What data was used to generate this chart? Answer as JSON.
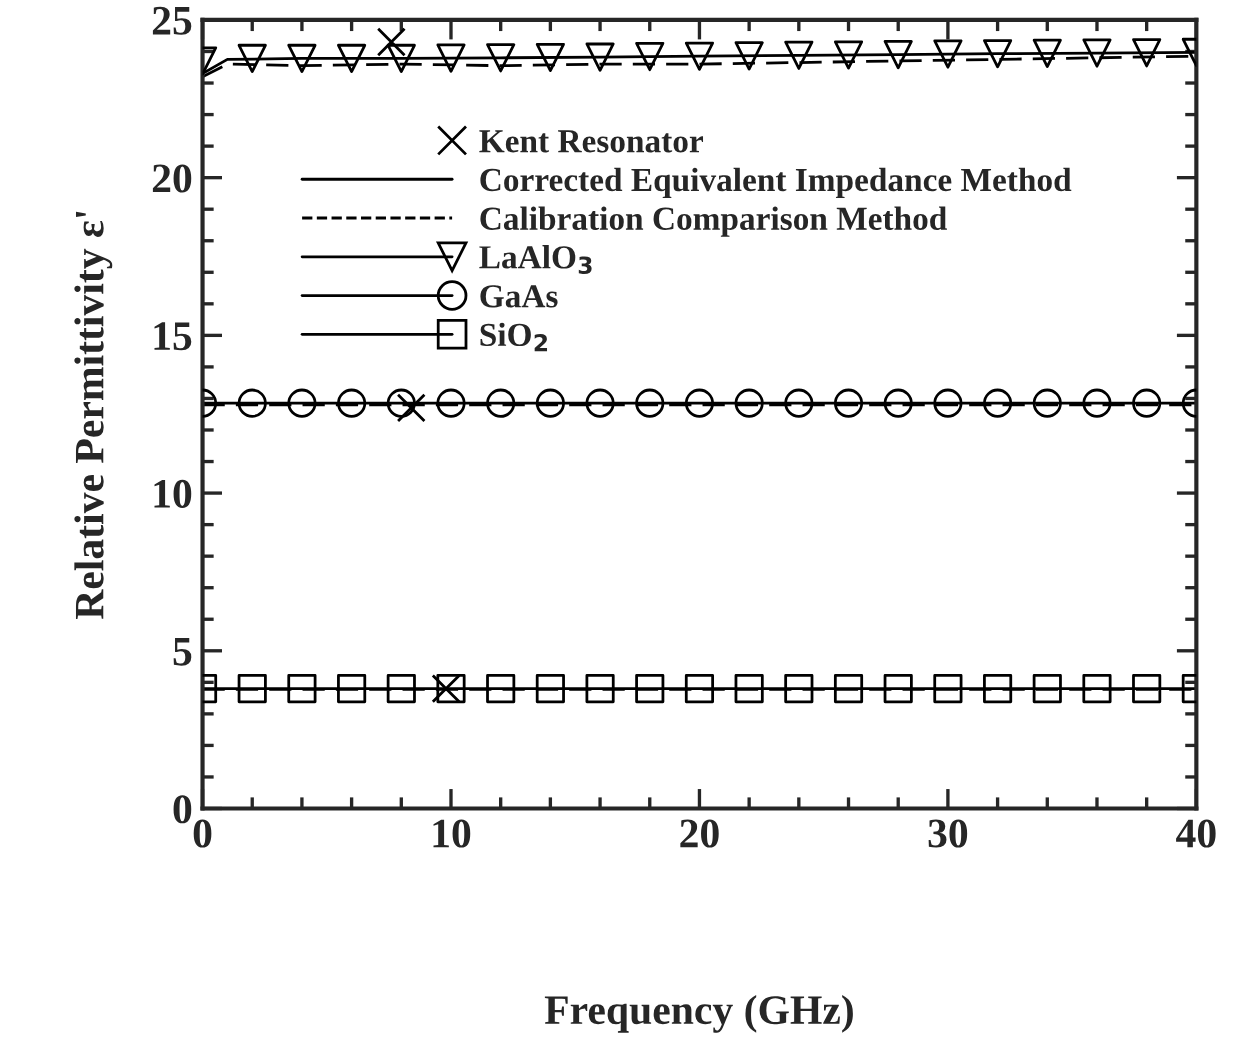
{
  "chart_data": {
    "type": "line",
    "xlabel": "Frequency (GHz)",
    "ylabel": "Relative Permittivity ε'",
    "xlim": [
      0,
      40
    ],
    "xticks": [
      0,
      10,
      20,
      30,
      40
    ],
    "ylim": [
      0,
      25
    ],
    "yticks": [
      0,
      5,
      10,
      15,
      20,
      25
    ],
    "grid": false,
    "legend": "top left",
    "series": [
      {
        "name": "Kent Resonator",
        "type": "scatter",
        "marker": "cross",
        "color": "#000000",
        "x": [
          7.6,
          8.4,
          9.8
        ],
        "values": [
          24.3,
          12.7,
          3.8
        ]
      },
      {
        "name": "Corrected Equivalent Impedance Method",
        "line_style": "solid",
        "color": "#000000",
        "x": [
          0,
          1,
          4,
          8,
          12,
          16,
          20,
          24,
          28,
          32,
          36,
          40
        ],
        "values": [
          23.3,
          23.75,
          23.78,
          23.78,
          23.8,
          23.82,
          23.85,
          23.88,
          23.9,
          23.93,
          23.95,
          23.97
        ]
      },
      {
        "name": "Calibration Comparison Method",
        "line_style": "dashed",
        "color": "#000000",
        "x": [
          0,
          1,
          4,
          8,
          12,
          16,
          20,
          24,
          28,
          32,
          36,
          40
        ],
        "values": [
          23.2,
          23.6,
          23.55,
          23.6,
          23.55,
          23.6,
          23.6,
          23.65,
          23.7,
          23.75,
          23.8,
          23.85
        ]
      },
      {
        "line_style": "solid",
        "color": "#000000",
        "x": [
          0,
          10,
          20,
          30,
          40
        ],
        "values": [
          12.85,
          12.85,
          12.85,
          12.85,
          12.85
        ]
      },
      {
        "line_style": "dashed",
        "color": "#000000",
        "x": [
          0,
          10,
          20,
          30,
          40
        ],
        "values": [
          12.8,
          12.8,
          12.8,
          12.8,
          12.8
        ]
      },
      {
        "line_style": "solid",
        "color": "#000000",
        "x": [
          0,
          10,
          20,
          30,
          40
        ],
        "values": [
          3.8,
          3.8,
          3.8,
          3.8,
          3.8
        ]
      },
      {
        "line_style": "dashed",
        "color": "#000000",
        "x": [
          0,
          10,
          20,
          30,
          40
        ],
        "values": [
          3.78,
          3.78,
          3.78,
          3.78,
          3.78
        ]
      },
      {
        "name": "LaAlO$_{3}$",
        "type": "scatter",
        "marker": "triangle",
        "color": "#000000",
        "x": [
          0,
          2,
          4,
          6,
          8,
          10,
          12,
          14,
          16,
          18,
          20,
          22,
          24,
          26,
          28,
          30,
          32,
          34,
          36,
          38,
          40
        ],
        "values": [
          23.7,
          23.78,
          23.78,
          23.78,
          23.78,
          23.79,
          23.8,
          23.81,
          23.82,
          23.84,
          23.85,
          23.86,
          23.88,
          23.89,
          23.9,
          23.92,
          23.93,
          23.94,
          23.95,
          23.96,
          23.97
        ]
      },
      {
        "name": "GaAs",
        "type": "scatter",
        "marker": "circle",
        "color": "#000000",
        "x": [
          0,
          2,
          4,
          6,
          8,
          10,
          12,
          14,
          16,
          18,
          20,
          22,
          24,
          26,
          28,
          30,
          32,
          34,
          36,
          38,
          40
        ],
        "values": [
          12.85,
          12.85,
          12.85,
          12.85,
          12.85,
          12.85,
          12.85,
          12.85,
          12.85,
          12.85,
          12.85,
          12.85,
          12.85,
          12.85,
          12.85,
          12.85,
          12.85,
          12.85,
          12.85,
          12.85,
          12.85
        ]
      },
      {
        "name": "SiO$_{2}$",
        "type": "scatter",
        "marker": "square",
        "color": "#000000",
        "x": [
          0,
          2,
          4,
          6,
          8,
          10,
          12,
          14,
          16,
          18,
          20,
          22,
          24,
          26,
          28,
          30,
          32,
          34,
          36,
          38,
          40
        ],
        "values": [
          3.8,
          3.8,
          3.8,
          3.8,
          3.8,
          3.8,
          3.8,
          3.8,
          3.8,
          3.8,
          3.8,
          3.8,
          3.8,
          3.8,
          3.8,
          3.8,
          3.8,
          3.8,
          3.8,
          3.8,
          3.8
        ]
      }
    ]
  }
}
